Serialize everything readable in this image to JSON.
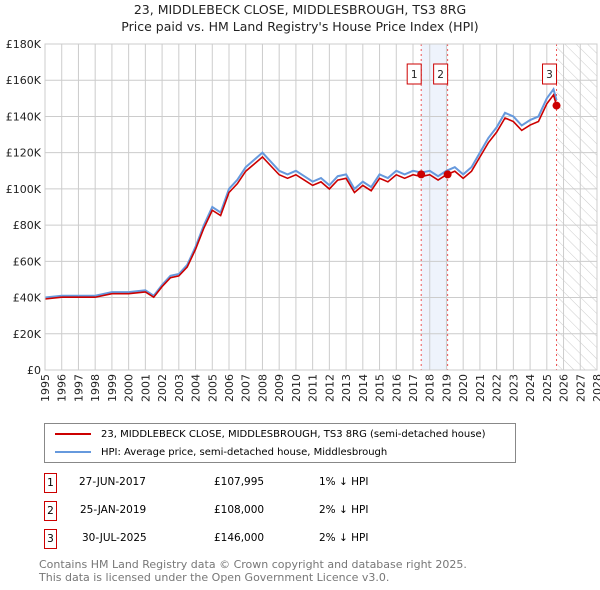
{
  "chart_data": {
    "type": "line",
    "title": "23, MIDDLEBECK CLOSE, MIDDLESBROUGH, TS3 8RG",
    "subtitle": "Price paid vs. HM Land Registry's House Price Index (HPI)",
    "xlim": [
      1995,
      2028
    ],
    "ylim": [
      0,
      180000
    ],
    "x_ticks": [
      "1995",
      "1996",
      "1997",
      "1998",
      "1999",
      "2000",
      "2001",
      "2002",
      "2003",
      "2004",
      "2005",
      "2006",
      "2007",
      "2008",
      "2009",
      "2010",
      "2011",
      "2012",
      "2013",
      "2014",
      "2015",
      "2016",
      "2017",
      "2018",
      "2019",
      "2020",
      "2021",
      "2022",
      "2023",
      "2024",
      "2025",
      "2026",
      "2027",
      "2028"
    ],
    "y_ticks": [
      {
        "v": 0,
        "label": "£0"
      },
      {
        "v": 20000,
        "label": "£20K"
      },
      {
        "v": 40000,
        "label": "£40K"
      },
      {
        "v": 60000,
        "label": "£60K"
      },
      {
        "v": 80000,
        "label": "£80K"
      },
      {
        "v": 100000,
        "label": "£100K"
      },
      {
        "v": 120000,
        "label": "£120K"
      },
      {
        "v": 140000,
        "label": "£140K"
      },
      {
        "v": 160000,
        "label": "£160K"
      },
      {
        "v": 180000,
        "label": "£180K"
      }
    ],
    "grid": true,
    "hpi_x": [
      1995,
      1996,
      1997,
      1998,
      1999,
      2000,
      2001,
      2001.5,
      2002,
      2002.5,
      2003,
      2003.5,
      2004,
      2004.5,
      2005,
      2005.5,
      2006,
      2006.5,
      2007,
      2007.5,
      2008,
      2008.5,
      2009,
      2009.5,
      2010,
      2010.5,
      2011,
      2011.5,
      2012,
      2012.5,
      2013,
      2013.5,
      2014,
      2014.5,
      2015,
      2015.5,
      2016,
      2016.5,
      2017,
      2017.5,
      2018,
      2018.5,
      2019,
      2019.5,
      2020,
      2020.5,
      2021,
      2021.5,
      2022,
      2022.5,
      2023,
      2023.5,
      2024,
      2024.5,
      2025,
      2025.4,
      2025.58
    ],
    "hpi_y": [
      40000,
      41000,
      41000,
      41000,
      43000,
      43000,
      44000,
      41000,
      47000,
      52000,
      53000,
      58000,
      68000,
      80000,
      90000,
      87000,
      100000,
      105000,
      112000,
      116000,
      120000,
      115000,
      110000,
      108000,
      110000,
      107000,
      104000,
      106000,
      102000,
      107000,
      108000,
      100000,
      104000,
      101000,
      108000,
      106000,
      110000,
      108000,
      110000,
      109000,
      110000,
      107000,
      110000,
      112000,
      108000,
      112000,
      120000,
      128000,
      134000,
      142000,
      140000,
      135000,
      138000,
      140000,
      150000,
      155000,
      149000
    ],
    "price_ratio": 0.98,
    "sales": [
      {
        "id": "1",
        "x": 2017.49,
        "y": 107995
      },
      {
        "id": "2",
        "x": 2019.07,
        "y": 108000
      },
      {
        "id": "3",
        "x": 2025.58,
        "y": 146000
      }
    ],
    "colors": {
      "price": "#cc0000",
      "hpi": "#6699dd"
    },
    "legend": [
      "23, MIDDLEBECK CLOSE, MIDDLESBROUGH, TS3 8RG (semi-detached house)",
      "HPI: Average price, semi-detached house, Middlesbrough"
    ]
  },
  "table": [
    {
      "id": "1",
      "date": "27-JUN-2017",
      "price": "£107,995",
      "delta": "1% ↓ HPI"
    },
    {
      "id": "2",
      "date": "25-JAN-2019",
      "price": "£108,000",
      "delta": "2% ↓ HPI"
    },
    {
      "id": "3",
      "date": "30-JUL-2025",
      "price": "£146,000",
      "delta": "2% ↓ HPI"
    }
  ],
  "footer": [
    "Contains HM Land Registry data © Crown copyright and database right 2025.",
    "This data is licensed under the Open Government Licence v3.0."
  ]
}
